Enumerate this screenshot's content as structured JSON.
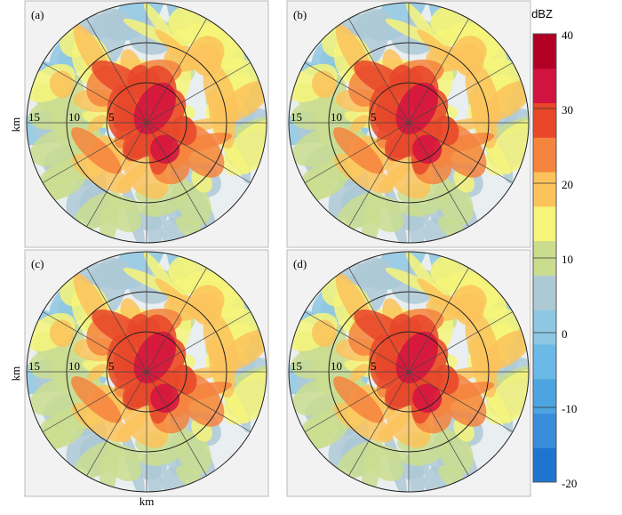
{
  "panels": [
    {
      "label": "(a)"
    },
    {
      "label": "(b)"
    },
    {
      "label": "(c)"
    },
    {
      "label": "(d)"
    }
  ],
  "range_labels": [
    "15",
    "10",
    "5"
  ],
  "axis_label": "km",
  "colorbar": {
    "title": "dBZ",
    "ticks": [
      -20,
      -10,
      0,
      10,
      20,
      30,
      40
    ],
    "lim": [
      -20,
      40
    ],
    "colors": [
      "#1f74d0",
      "#3a8ddb",
      "#4ea4e0",
      "#6bb9e6",
      "#8ec7e2",
      "#aec9d6",
      "#cadd8f",
      "#f6f47a",
      "#fbc35c",
      "#f5843e",
      "#e8472a",
      "#d2123f",
      "#b00024"
    ]
  }
}
